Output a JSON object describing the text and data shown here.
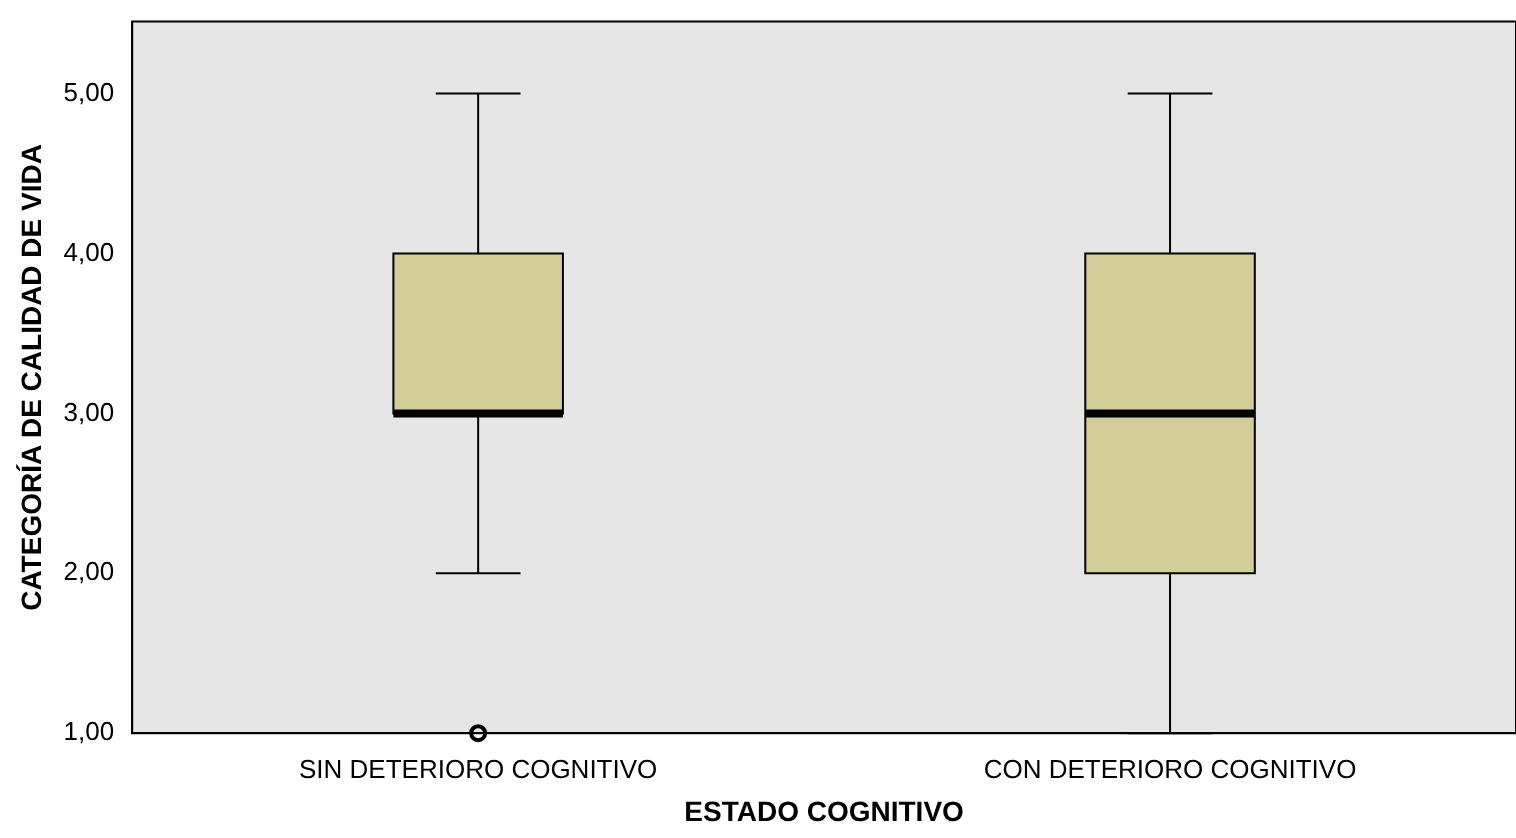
{
  "chart_data": {
    "type": "box",
    "xlabel": "ESTADO COGNITIVO",
    "ylabel": "CATEGORÍA DE CALIDAD DE VIDA",
    "categories": [
      "SIN DETERIORO COGNITIVO",
      "CON DETERIORO COGNITIVO"
    ],
    "boxes": [
      {
        "low": 2,
        "q1": 3,
        "median": 3,
        "q3": 4,
        "high": 5,
        "outliers": [
          1
        ]
      },
      {
        "low": 1,
        "q1": 2,
        "median": 3,
        "q3": 4,
        "high": 5
      }
    ],
    "color": "#d3ce98",
    "ylim": [
      1,
      5.45
    ],
    "yticks": [
      {
        "value": 1,
        "label": "1,00"
      },
      {
        "value": 2,
        "label": "2,00"
      },
      {
        "value": 3,
        "label": "3,00"
      },
      {
        "value": 4,
        "label": "4,00"
      },
      {
        "value": 5,
        "label": "5,00"
      }
    ],
    "grid": false
  }
}
